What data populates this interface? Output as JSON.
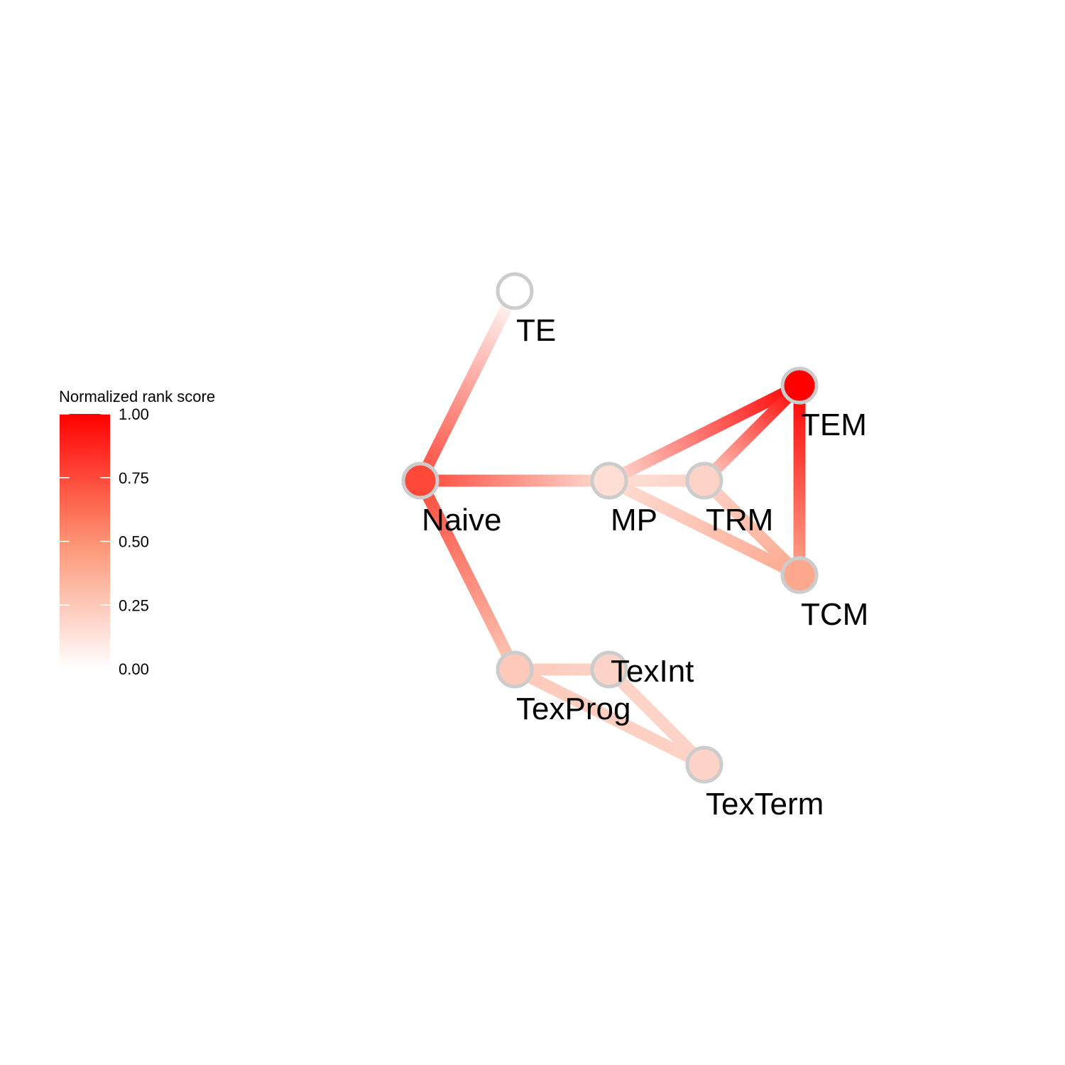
{
  "legend": {
    "title": "Normalized rank score",
    "ticks": [
      {
        "value": 1.0,
        "label": "1.00"
      },
      {
        "value": 0.75,
        "label": "0.75"
      },
      {
        "value": 0.5,
        "label": "0.50"
      },
      {
        "value": 0.25,
        "label": "0.25"
      },
      {
        "value": 0.0,
        "label": "0.00"
      }
    ],
    "color_low": "#ffffff",
    "color_high": "#ff0000"
  },
  "nodes": [
    {
      "id": "TE",
      "label": "TE",
      "score": 0.0
    },
    {
      "id": "Naive",
      "label": "Naive",
      "score": 0.75
    },
    {
      "id": "MP",
      "label": "MP",
      "score": 0.15
    },
    {
      "id": "TRM",
      "label": "TRM",
      "score": 0.2
    },
    {
      "id": "TEM",
      "label": "TEM",
      "score": 1.0
    },
    {
      "id": "TCM",
      "label": "TCM",
      "score": 0.4
    },
    {
      "id": "TexProg",
      "label": "TexProg",
      "score": 0.25
    },
    {
      "id": "TexInt",
      "label": "TexInt",
      "score": 0.2
    },
    {
      "id": "TexTerm",
      "label": "TexTerm",
      "score": 0.2
    }
  ],
  "edges": [
    {
      "from": "Naive",
      "to": "TE"
    },
    {
      "from": "Naive",
      "to": "MP"
    },
    {
      "from": "Naive",
      "to": "TexProg"
    },
    {
      "from": "MP",
      "to": "TRM"
    },
    {
      "from": "MP",
      "to": "TEM"
    },
    {
      "from": "MP",
      "to": "TCM"
    },
    {
      "from": "TRM",
      "to": "TEM"
    },
    {
      "from": "TRM",
      "to": "TCM"
    },
    {
      "from": "TEM",
      "to": "TCM"
    },
    {
      "from": "TexProg",
      "to": "TexInt"
    },
    {
      "from": "TexProg",
      "to": "TexTerm"
    },
    {
      "from": "TexInt",
      "to": "TexTerm"
    }
  ],
  "node_border_color": "#cccccc",
  "label_color": "#000000"
}
